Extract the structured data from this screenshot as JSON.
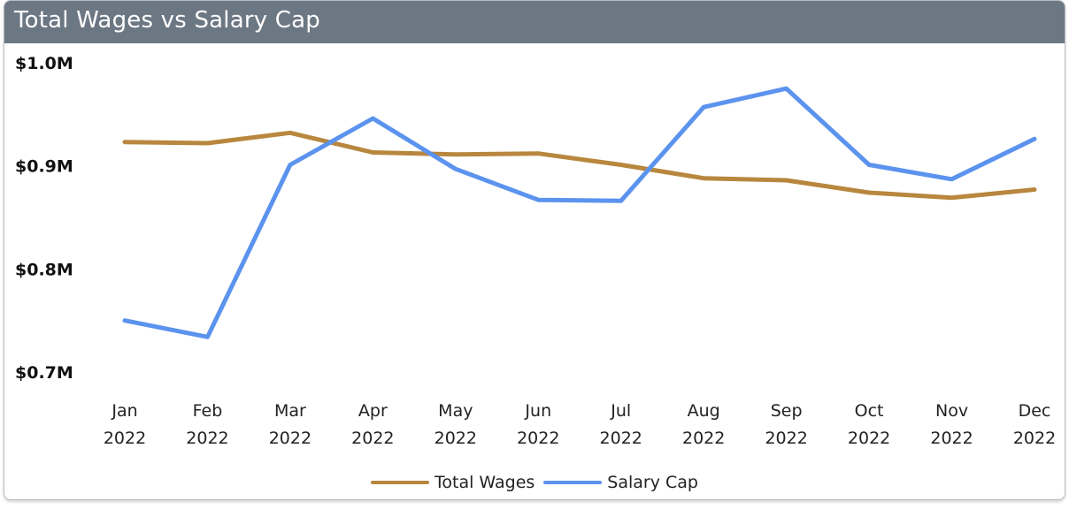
{
  "widget": {
    "title": "Total Wages vs Salary Cap"
  },
  "colors": {
    "header_bg": "#6c7784",
    "total_wages": "#b8873e",
    "salary_cap": "#5b93ee"
  },
  "chart_data": {
    "type": "line",
    "title": "Total Wages vs Salary Cap",
    "xlabel": "",
    "ylabel": "",
    "categories": [
      [
        "Jan",
        "2022"
      ],
      [
        "Feb",
        "2022"
      ],
      [
        "Mar",
        "2022"
      ],
      [
        "Apr",
        "2022"
      ],
      [
        "May",
        "2022"
      ],
      [
        "Jun",
        "2022"
      ],
      [
        "Jul",
        "2022"
      ],
      [
        "Aug",
        "2022"
      ],
      [
        "Sep",
        "2022"
      ],
      [
        "Oct",
        "2022"
      ],
      [
        "Nov",
        "2022"
      ],
      [
        "Dec",
        "2022"
      ]
    ],
    "y_ticks": [
      {
        "value": 1000000,
        "label": "$1.0M"
      },
      {
        "value": 900000,
        "label": "$0.9M"
      },
      {
        "value": 800000,
        "label": "$0.8M"
      },
      {
        "value": 700000,
        "label": "$0.7M"
      }
    ],
    "ylim": [
      700000,
      1000000
    ],
    "grid": false,
    "legend_position": "bottom-center",
    "series": [
      {
        "name": "Total Wages",
        "color": "#b8873e",
        "values": [
          923000,
          922000,
          932000,
          913000,
          911000,
          912000,
          901000,
          888000,
          886000,
          874000,
          869000,
          877000
        ]
      },
      {
        "name": "Salary Cap",
        "color": "#5b93ee",
        "values": [
          750000,
          734000,
          901000,
          946000,
          897000,
          867000,
          866000,
          957000,
          975000,
          901000,
          887000,
          926000
        ]
      }
    ]
  }
}
